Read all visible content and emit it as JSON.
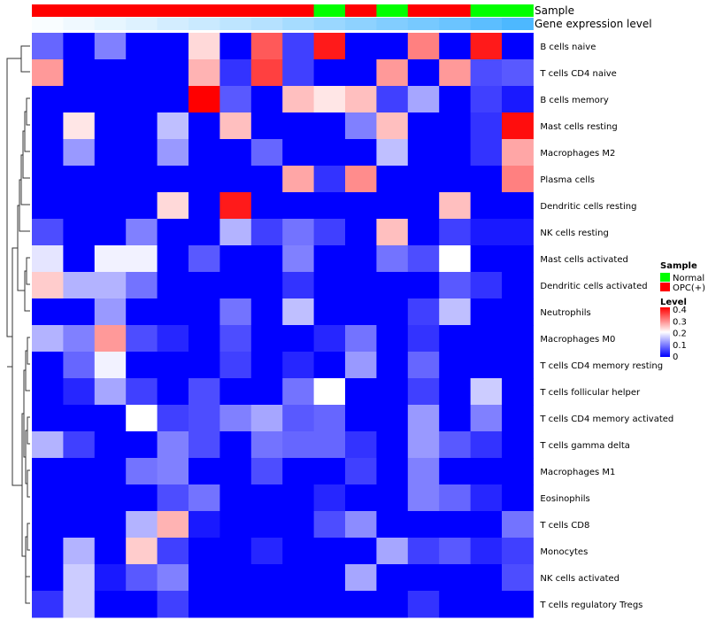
{
  "chart_data": {
    "type": "heatmap",
    "annotation_labels": {
      "sample": "Sample",
      "gene_expression": "Gene expression level"
    },
    "sample_groups": [
      "OPC(+)",
      "OPC(+)",
      "OPC(+)",
      "OPC(+)",
      "OPC(+)",
      "OPC(+)",
      "OPC(+)",
      "OPC(+)",
      "OPC(+)",
      "Normal",
      "OPC(+)",
      "Normal",
      "OPC(+)",
      "OPC(+)",
      "Normal",
      "Normal"
    ],
    "gene_expression_level": [
      0.02,
      0.05,
      0.08,
      0.11,
      0.15,
      0.18,
      0.22,
      0.25,
      0.3,
      0.34,
      0.38,
      0.42,
      0.46,
      0.5,
      0.55,
      0.6
    ],
    "rows": [
      "B cells naive",
      "T cells CD4 naive",
      "B cells memory",
      "Mast cells resting",
      "Macrophages M2",
      "Plasma cells",
      "Dendritic cells resting",
      "NK cells resting",
      "Mast cells activated",
      "Dendritic cells activated",
      "Neutrophils",
      "Macrophages M0",
      "T cells CD4 memory resting",
      "T cells follicular helper",
      "T cells CD4 memory activated",
      "T cells gamma delta",
      "Macrophages M1",
      "Eosinophils",
      "T cells CD8",
      "Monocytes",
      "NK cells activated",
      "T cells regulatory  Tregs"
    ],
    "values": [
      [
        0.08,
        0.0,
        0.1,
        0.0,
        0.0,
        0.23,
        0.0,
        0.33,
        0.05,
        0.38,
        0.0,
        0.0,
        0.3,
        0.0,
        0.38,
        0.0
      ],
      [
        0.28,
        0.0,
        0.0,
        0.0,
        0.0,
        0.26,
        0.04,
        0.35,
        0.05,
        0.0,
        0.0,
        0.28,
        0.0,
        0.28,
        0.06,
        0.07
      ],
      [
        0.0,
        0.0,
        0.0,
        0.0,
        0.0,
        0.4,
        0.07,
        0.0,
        0.25,
        0.22,
        0.25,
        0.05,
        0.13,
        0.0,
        0.05,
        0.02
      ],
      [
        0.0,
        0.22,
        0.0,
        0.0,
        0.15,
        0.0,
        0.25,
        0.0,
        0.0,
        0.0,
        0.1,
        0.25,
        0.0,
        0.0,
        0.04,
        0.39
      ],
      [
        0.0,
        0.12,
        0.0,
        0.0,
        0.12,
        0.0,
        0.0,
        0.08,
        0.0,
        0.0,
        0.0,
        0.15,
        0.0,
        0.0,
        0.04,
        0.27
      ],
      [
        0.0,
        0.0,
        0.0,
        0.0,
        0.0,
        0.0,
        0.0,
        0.0,
        0.27,
        0.04,
        0.29,
        0.0,
        0.0,
        0.0,
        0.0,
        0.3
      ],
      [
        0.0,
        0.0,
        0.0,
        0.0,
        0.23,
        0.0,
        0.38,
        0.0,
        0.0,
        0.0,
        0.0,
        0.0,
        0.0,
        0.25,
        0.0,
        0.0
      ],
      [
        0.06,
        0.0,
        0.0,
        0.1,
        0.0,
        0.0,
        0.14,
        0.05,
        0.09,
        0.05,
        0.0,
        0.25,
        0.0,
        0.05,
        0.02,
        0.02
      ],
      [
        0.18,
        0.0,
        0.19,
        0.19,
        0.0,
        0.07,
        0.0,
        0.0,
        0.1,
        0.0,
        0.0,
        0.09,
        0.06,
        0.2,
        0.0,
        0.0
      ],
      [
        0.24,
        0.14,
        0.14,
        0.09,
        0.0,
        0.0,
        0.0,
        0.0,
        0.04,
        0.0,
        0.0,
        0.0,
        0.0,
        0.07,
        0.04,
        0.0
      ],
      [
        0.0,
        0.0,
        0.12,
        0.0,
        0.0,
        0.0,
        0.09,
        0.0,
        0.15,
        0.0,
        0.0,
        0.0,
        0.05,
        0.15,
        0.0,
        0.0
      ],
      [
        0.14,
        0.1,
        0.28,
        0.06,
        0.03,
        0.0,
        0.06,
        0.0,
        0.0,
        0.03,
        0.09,
        0.0,
        0.04,
        0.0,
        0.0,
        0.0
      ],
      [
        0.0,
        0.08,
        0.19,
        0.0,
        0.0,
        0.0,
        0.05,
        0.0,
        0.03,
        0.0,
        0.12,
        0.0,
        0.08,
        0.0,
        0.0,
        0.0
      ],
      [
        0.0,
        0.03,
        0.13,
        0.05,
        0.0,
        0.06,
        0.0,
        0.0,
        0.09,
        0.2,
        0.0,
        0.0,
        0.05,
        0.0,
        0.16,
        0.0
      ],
      [
        0.0,
        0.0,
        0.0,
        0.2,
        0.05,
        0.06,
        0.1,
        0.13,
        0.07,
        0.08,
        0.0,
        0.0,
        0.12,
        0.0,
        0.1,
        0.0
      ],
      [
        0.14,
        0.05,
        0.0,
        0.0,
        0.1,
        0.06,
        0.0,
        0.09,
        0.08,
        0.08,
        0.04,
        0.0,
        0.12,
        0.07,
        0.04,
        0.0
      ],
      [
        0.0,
        0.0,
        0.0,
        0.09,
        0.1,
        0.0,
        0.0,
        0.06,
        0.0,
        0.0,
        0.05,
        0.0,
        0.1,
        0.0,
        0.0,
        0.0
      ],
      [
        0.0,
        0.0,
        0.0,
        0.0,
        0.06,
        0.09,
        0.0,
        0.0,
        0.0,
        0.03,
        0.0,
        0.0,
        0.1,
        0.08,
        0.03,
        0.0
      ],
      [
        0.0,
        0.0,
        0.0,
        0.14,
        0.26,
        0.02,
        0.0,
        0.0,
        0.0,
        0.06,
        0.11,
        0.0,
        0.0,
        0.0,
        0.0,
        0.09
      ],
      [
        0.0,
        0.14,
        0.0,
        0.24,
        0.05,
        0.0,
        0.0,
        0.03,
        0.0,
        0.0,
        0.0,
        0.13,
        0.05,
        0.07,
        0.03,
        0.05
      ],
      [
        0.0,
        0.16,
        0.02,
        0.07,
        0.1,
        0.0,
        0.0,
        0.0,
        0.0,
        0.0,
        0.13,
        0.0,
        0.0,
        0.0,
        0.0,
        0.06
      ],
      [
        0.04,
        0.16,
        0.0,
        0.0,
        0.05,
        0.0,
        0.0,
        0.0,
        0.0,
        0.0,
        0.0,
        0.0,
        0.04,
        0.0,
        0.0,
        0.0
      ]
    ],
    "legend": {
      "sample_title": "Sample",
      "sample_entries": [
        {
          "label": "Normal",
          "color": "#00ff00"
        },
        {
          "label": "OPC(+)",
          "color": "#ff0000"
        }
      ],
      "level_title": "Level",
      "level_ticks": [
        "0.4",
        "0.3",
        "0.2",
        "0.1",
        "0"
      ],
      "level_min": 0,
      "level_max": 0.4,
      "placement": "right"
    },
    "colors": {
      "low": "#0000ff",
      "mid": "#ffffff",
      "high": "#ff0000",
      "expr_low": "#ffffff",
      "expr_high": "#4db8ff"
    }
  }
}
